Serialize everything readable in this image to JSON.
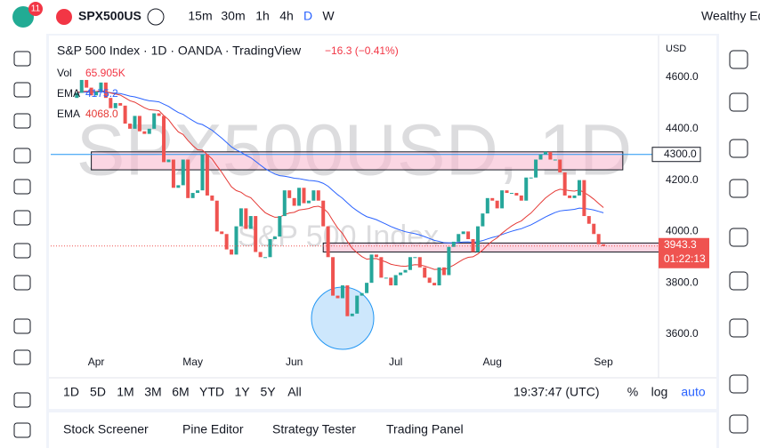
{
  "toolbar": {
    "badge": "11",
    "symbol": "SPX500US",
    "intervals": [
      "15m",
      "30m",
      "1h",
      "4h",
      "D",
      "W"
    ],
    "account": "Wealthy Ed"
  },
  "chart": {
    "legend": {
      "title": "S&P 500 Index · 1D · OANDA · TradingView",
      "change": "−16.3 (−0.41%)",
      "vol_label": "Vol",
      "vol": "65.905K",
      "ema_label": "EMA",
      "ema1": "4175.2",
      "ema2": "4068.0"
    },
    "watermark": "SPX500USD, 1D",
    "watermark_sub": "S&P 500 Index",
    "currency": "USD",
    "ylim": [
      3534,
      4756
    ],
    "yticks": [
      {
        "value": 3600,
        "label": "3600.0"
      },
      {
        "value": 3800,
        "label": "3800.0"
      },
      {
        "value": 4000,
        "label": "4000.0"
      },
      {
        "value": 4200,
        "label": "4200.0"
      },
      {
        "value": 4400,
        "label": "4400.0"
      },
      {
        "value": 4600,
        "label": "4600.0"
      }
    ],
    "xlim": [
      -5.4,
      120.4
    ],
    "xticks": [
      {
        "value": 4,
        "label": "Apr"
      },
      {
        "value": 24,
        "label": "May"
      },
      {
        "value": 45,
        "label": "Jun"
      },
      {
        "value": 66,
        "label": "Jul"
      },
      {
        "value": 86,
        "label": "Aug"
      },
      {
        "value": 109,
        "label": "Sep"
      }
    ],
    "first_open": 4520,
    "closes": [
      4540,
      4590,
      4560,
      4530,
      4545,
      4580,
      4520,
      4480,
      4500,
      4490,
      4420,
      4400,
      4450,
      4390,
      4380,
      4400,
      4460,
      4450,
      4270,
      4280,
      4170,
      4180,
      4280,
      4130,
      4150,
      4160,
      4300,
      4140,
      4120,
      4000,
      3990,
      3930,
      3910,
      4020,
      4090,
      4010,
      4060,
      3920,
      3900,
      3900,
      3970,
      3980,
      4060,
      4160,
      4130,
      4100,
      4170,
      4110,
      4120,
      4160,
      4120,
      4020,
      3900,
      3750,
      3740,
      3790,
      3670,
      3680,
      3750,
      3760,
      3800,
      3910,
      3900,
      3820,
      3820,
      3790,
      3830,
      3840,
      3850,
      3900,
      3900,
      3860,
      3820,
      3800,
      3790,
      3860,
      3830,
      3940,
      3960,
      3990,
      4000,
      3970,
      3920,
      4020,
      4070,
      4130,
      4120,
      4090,
      4160,
      4150,
      4150,
      4140,
      4120,
      4210,
      4210,
      4280,
      4300,
      4310,
      4280,
      4280,
      4230,
      4140,
      4130,
      4140,
      4200,
      4060,
      4030,
      3990,
      3950,
      3943.3
    ],
    "zones": [
      {
        "top": 4310,
        "bottom": 4240,
        "from": 3,
        "to": 113
      },
      {
        "top": 3955,
        "bottom": 3920,
        "from": 51,
        "to": 121
      }
    ],
    "level": {
      "value": 4300,
      "label": "4300.0"
    },
    "countdown": "01:22:13"
  },
  "bottom_bar": {
    "ranges": [
      "1D",
      "5D",
      "1M",
      "3M",
      "6M",
      "YTD",
      "1Y",
      "5Y",
      "All"
    ],
    "clock": "19:37:47 (UTC)",
    "options": [
      "%",
      "log",
      "auto"
    ]
  },
  "tabs": [
    "Stock Screener",
    "Pine Editor",
    "Strategy Tester",
    "Trading Panel"
  ]
}
